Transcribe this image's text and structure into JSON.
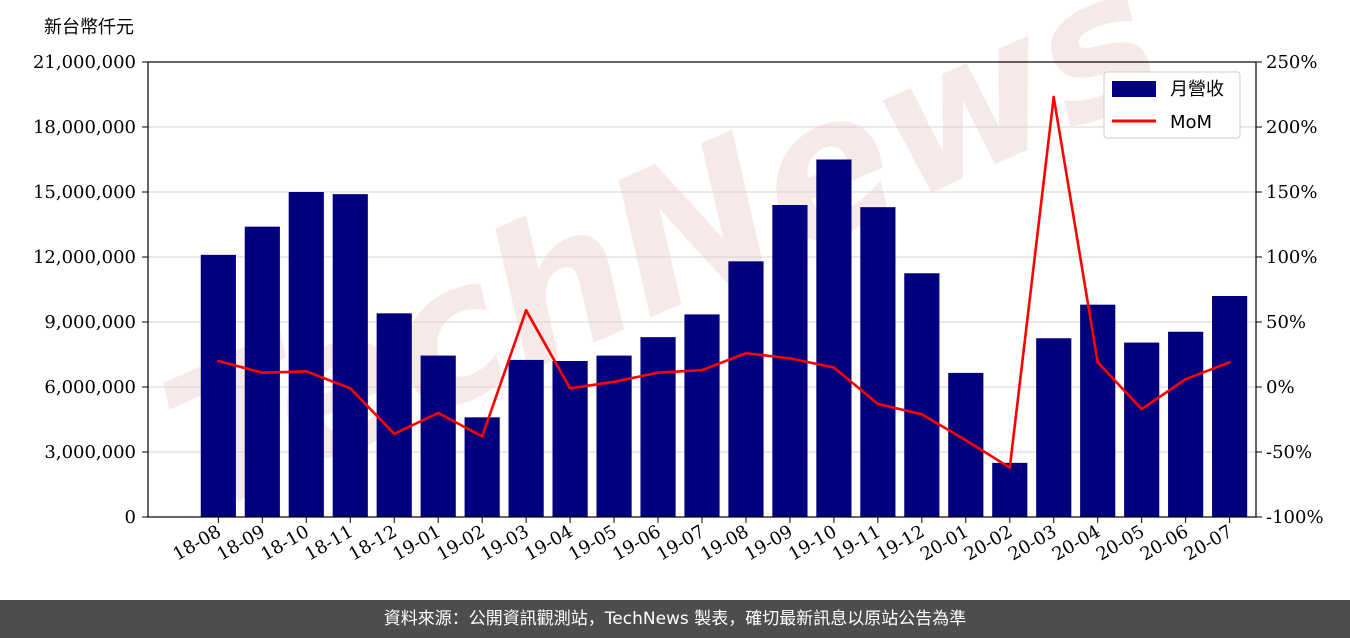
{
  "watermark": "TechNews",
  "footer": {
    "source_text": "資料來源：公開資訊觀測站，TechNews 製表，確切最新訊息以原站公告為準"
  },
  "colors": {
    "bar": "#00007f",
    "line": "#ff0000",
    "grid": "#d3d3d3",
    "watermark": "#f0d0d0",
    "footer_bg": "#4d4d4d"
  },
  "chart_data": {
    "type": "bar",
    "y_unit_label": "新台幣仟元",
    "categories": [
      "18-08",
      "18-09",
      "18-10",
      "18-11",
      "18-12",
      "19-01",
      "19-02",
      "19-03",
      "19-04",
      "19-05",
      "19-06",
      "19-07",
      "19-08",
      "19-09",
      "19-10",
      "19-11",
      "19-12",
      "20-01",
      "20-02",
      "20-03",
      "20-04",
      "20-05",
      "20-06",
      "20-07"
    ],
    "series": [
      {
        "name": "月營收",
        "type": "bar",
        "axis": "left",
        "values": [
          12100000,
          13400000,
          15000000,
          14900000,
          9400000,
          7450000,
          4600000,
          7250000,
          7200000,
          7450000,
          8300000,
          9350000,
          11800000,
          14400000,
          16500000,
          14300000,
          11250000,
          6650000,
          2500000,
          8250000,
          9800000,
          8050000,
          8550000,
          10200000
        ]
      },
      {
        "name": "MoM",
        "type": "line",
        "axis": "right",
        "values": [
          20,
          11,
          12,
          -1,
          -36,
          -20,
          -38,
          59,
          -1,
          4,
          11,
          13,
          26,
          22,
          15,
          -13,
          -21,
          -41,
          -62,
          223,
          19,
          -17,
          6,
          19
        ]
      }
    ],
    "y_left": {
      "min": 0,
      "max": 21000000,
      "ticks": [
        0,
        3000000,
        6000000,
        9000000,
        12000000,
        15000000,
        18000000,
        21000000
      ],
      "tick_labels": [
        "0",
        "3,000,000",
        "6,000,000",
        "9,000,000",
        "12,000,000",
        "15,000,000",
        "18,000,000",
        "21,000,000"
      ]
    },
    "y_right": {
      "min": -100,
      "max": 250,
      "ticks": [
        -100,
        -50,
        0,
        50,
        100,
        150,
        200,
        250
      ],
      "tick_labels": [
        "-100%",
        "-50%",
        "0%",
        "50%",
        "100%",
        "150%",
        "200%",
        "250%"
      ]
    },
    "grid": true,
    "legend": "top-right"
  }
}
